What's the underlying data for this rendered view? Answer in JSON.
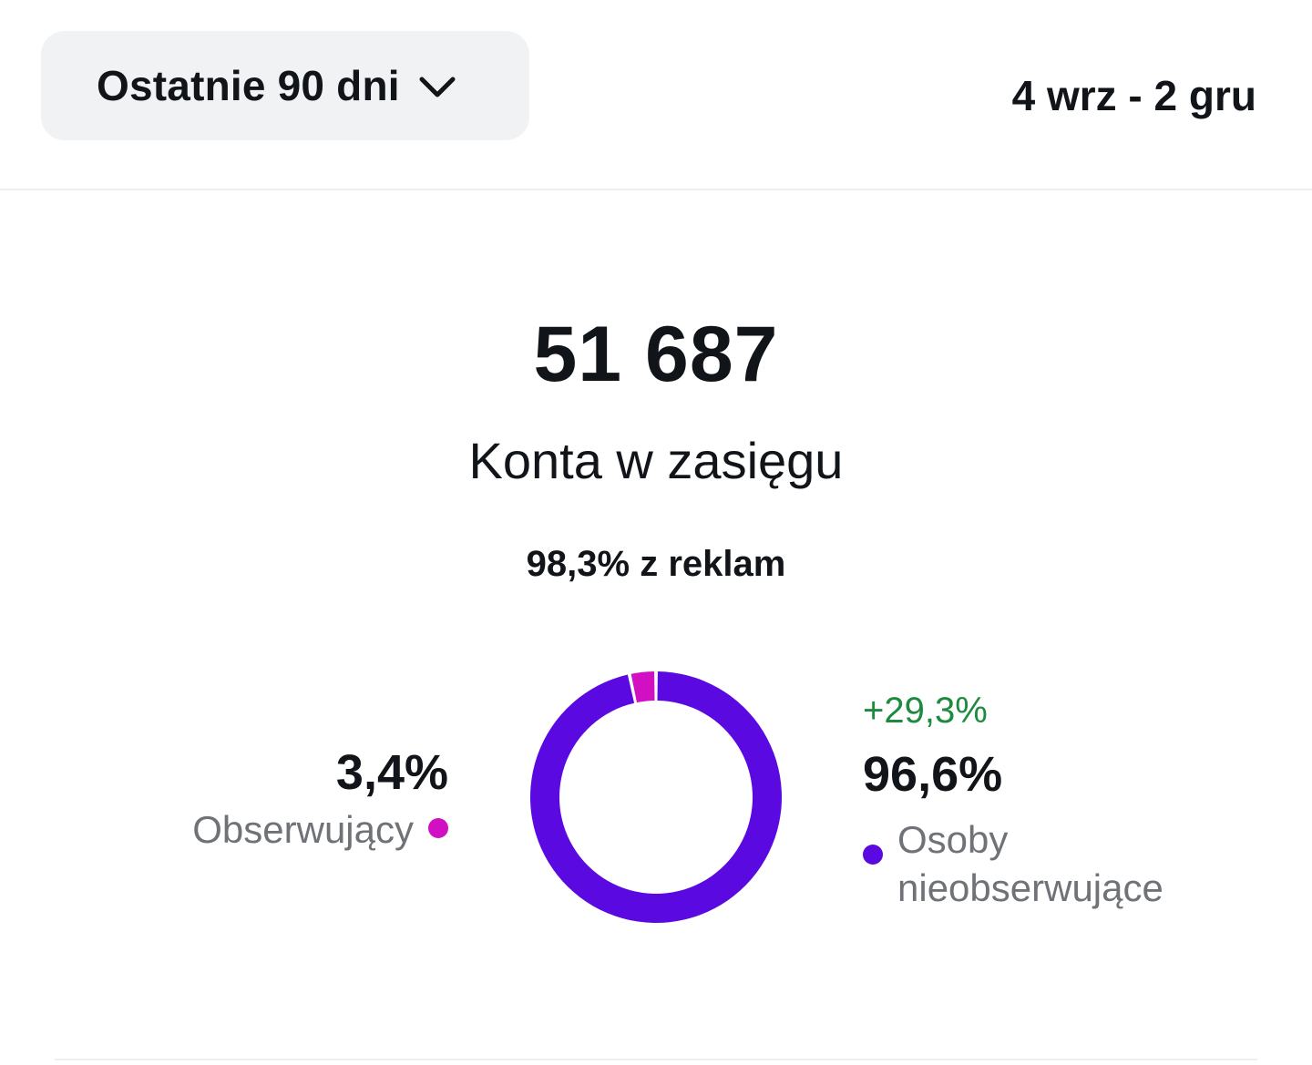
{
  "header": {
    "range_select_label": "Ostatnie 90 dni",
    "chevron_icon": "chevron-down-icon",
    "date_range": "4 wrz - 2 gru"
  },
  "summary": {
    "value": "51 687",
    "label": "Konta w zasięgu",
    "ads_share": "98,3% z reklam"
  },
  "breakdown": {
    "followers": {
      "percent": "3,4%",
      "label": "Obserwujący",
      "share": 3.4,
      "color": "#d10fc3"
    },
    "non_followers": {
      "change": "+29,3%",
      "percent": "96,6%",
      "label": "Osoby nieobserwujące",
      "share": 96.6,
      "color": "#5a0ae0"
    },
    "change_color": "#1d8a3f"
  }
}
